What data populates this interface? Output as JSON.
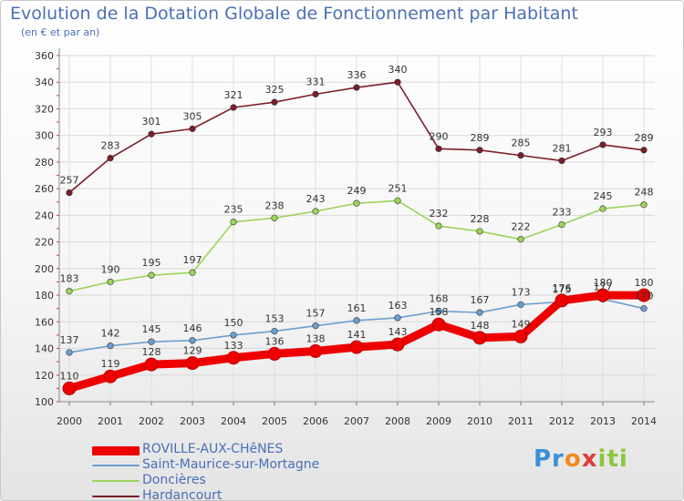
{
  "chart_data": {
    "type": "line",
    "title": "Evolution de la Dotation Globale de Fonctionnement par Habitant",
    "subtitle": "(en € et par an)",
    "x": [
      "2000",
      "2001",
      "2002",
      "2003",
      "2004",
      "2005",
      "2006",
      "2007",
      "2008",
      "2009",
      "2010",
      "2011",
      "2012",
      "2013",
      "2014"
    ],
    "ylim": [
      100,
      360
    ],
    "yticks": [
      100,
      120,
      140,
      160,
      180,
      200,
      220,
      240,
      260,
      280,
      300,
      320,
      340,
      360
    ],
    "grid": true,
    "legend_position": "bottom-left",
    "series": [
      {
        "name": "Hardancourt",
        "color": "#7a1f2a",
        "values": [
          257,
          283,
          301,
          305,
          321,
          325,
          331,
          336,
          340,
          290,
          289,
          285,
          281,
          293,
          289
        ],
        "labels": [
          "257",
          "283",
          "301",
          "305",
          "321",
          "325",
          "331",
          "336",
          "340",
          "290",
          "289",
          "285",
          "281",
          "293",
          "289"
        ]
      },
      {
        "name": "Doncières",
        "color": "#9bd45a",
        "values": [
          183,
          190,
          195,
          197,
          235,
          238,
          243,
          249,
          251,
          232,
          228,
          222,
          233,
          245,
          248
        ],
        "labels": [
          "183",
          "190",
          "195",
          "197",
          "235",
          "238",
          "243",
          "249",
          "251",
          "232",
          "228",
          "222",
          "233",
          "245",
          "248"
        ]
      },
      {
        "name": "Saint-Maurice-sur-Mortagne",
        "color": "#6c9fcf",
        "values": [
          137,
          142,
          145,
          146,
          150,
          153,
          157,
          161,
          163,
          168,
          167,
          173,
          175,
          177,
          170
        ],
        "labels": [
          "137",
          "142",
          "145",
          "146",
          "150",
          "153",
          "157",
          "161",
          "163",
          "168",
          "167",
          "173",
          "175",
          "177",
          "170"
        ]
      },
      {
        "name": "ROVILLE-AUX-CHêNES",
        "color": "#ee0000",
        "values": [
          110,
          119,
          128,
          129,
          133,
          136,
          138,
          141,
          143,
          158,
          148,
          149,
          176,
          180,
          180
        ],
        "labels": [
          "110",
          "119",
          "128",
          "129",
          "133",
          "136",
          "138",
          "141",
          "143",
          "158",
          "148",
          "149",
          "176",
          "180",
          "180"
        ]
      }
    ]
  },
  "legend": [
    {
      "label": "ROVILLE-AUX-CHêNES",
      "color": "#ee0000"
    },
    {
      "label": "Saint-Maurice-sur-Mortagne",
      "color": "#6c9fcf"
    },
    {
      "label": "Doncières",
      "color": "#9bd45a"
    },
    {
      "label": "Hardancourt",
      "color": "#7a1f2a"
    }
  ],
  "logo": {
    "p1": "Pr",
    "p2": "o",
    "p3": "x",
    "p4": "iti"
  }
}
